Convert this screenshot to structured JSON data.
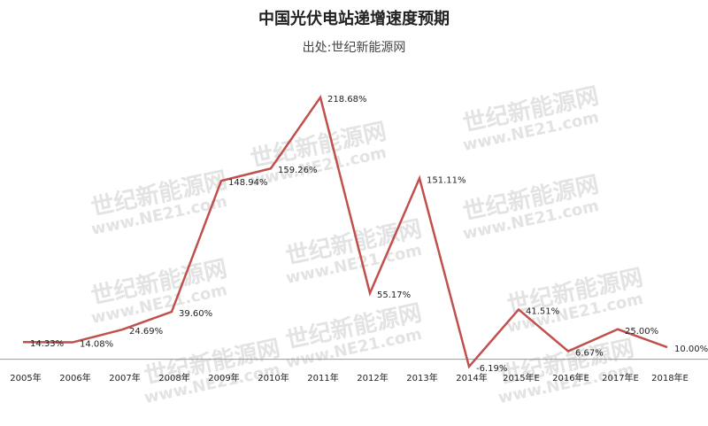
{
  "chart_data": {
    "type": "line",
    "title": "中国光伏电站递增速度预期",
    "subtitle": "出处:世纪新能源网",
    "watermark": [
      "世纪新能源网",
      "www.NE21.com"
    ],
    "categories": [
      "2005年",
      "2006年",
      "2007年",
      "2008年",
      "2009年",
      "2010年",
      "2011年",
      "2012年",
      "2013年",
      "2014年",
      "2015年E",
      "2016年E",
      "2017年E",
      "2018年E"
    ],
    "values": [
      14.33,
      14.08,
      24.69,
      39.6,
      148.94,
      159.26,
      218.68,
      55.17,
      151.11,
      -6.19,
      41.51,
      6.67,
      25.0,
      10.0
    ],
    "value_labels": [
      "14.33%",
      "14.08%",
      "24.69%",
      "39.60%",
      "148.94%",
      "159.26%",
      "218.68%",
      "55.17%",
      "151.11%",
      "-6.19%",
      "41.51%",
      "6.67%",
      "25.00%",
      "10.00%"
    ],
    "color": "#c0504d",
    "ylim": [
      -10,
      230
    ]
  }
}
